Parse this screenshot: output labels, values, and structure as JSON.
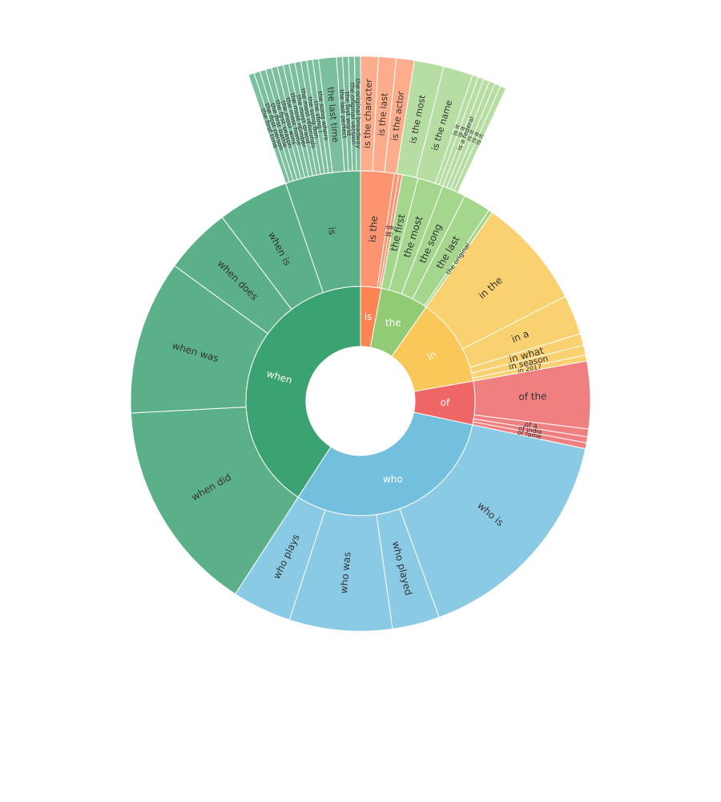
{
  "chart_data": {
    "type": "sunburst",
    "title": "",
    "colors": {
      "when": [
        "#3ba272",
        "#5bb08a",
        "#7cbf9f"
      ],
      "is": [
        "#fc8452",
        "#fd9470",
        "#fdac8c"
      ],
      "the": [
        "#91cc75",
        "#a5d68e",
        "#b6dea3"
      ],
      "in": [
        "#fac858",
        "#fad170",
        "#fbda8b"
      ],
      "of": [
        "#ee6666",
        "#f07f7f",
        "#f39595"
      ],
      "who": [
        "#73c0de",
        "#8bcae4",
        "#a3d4ea"
      ]
    },
    "rings": [
      [
        {
          "name": "is",
          "start": 0,
          "end": 10.5
        },
        {
          "name": "the",
          "start": 10.5,
          "end": 35
        },
        {
          "name": "in",
          "start": 35,
          "end": 80
        },
        {
          "name": "of",
          "start": 80,
          "end": 102
        },
        {
          "name": "who",
          "start": 102,
          "end": 213
        },
        {
          "name": "when",
          "start": 213,
          "end": 360
        }
      ],
      [
        {
          "name": "is the",
          "start": 0,
          "end": 8.5
        },
        {
          "name": "is it",
          "start": 8.5,
          "end": 9.6
        },
        {
          "name": "is a",
          "start": 9.6,
          "end": 10.5
        },
        {
          "name": "the first",
          "start": 10.5,
          "end": 14.5
        },
        {
          "name": "the most",
          "start": 14.5,
          "end": 21
        },
        {
          "name": "the song",
          "start": 21,
          "end": 27
        },
        {
          "name": "the last",
          "start": 27,
          "end": 34
        },
        {
          "name": "the original",
          "start": 34,
          "end": 35
        },
        {
          "name": "in the",
          "start": 35,
          "end": 63
        },
        {
          "name": "in a",
          "start": 63,
          "end": 73
        },
        {
          "name": "in what",
          "start": 73,
          "end": 76
        },
        {
          "name": "in season",
          "start": 76,
          "end": 78.5
        },
        {
          "name": "in 2017",
          "start": 78.5,
          "end": 80
        },
        {
          "name": "of the",
          "start": 80,
          "end": 97
        },
        {
          "name": "of a",
          "start": 97,
          "end": 99
        },
        {
          "name": "of india",
          "start": 99,
          "end": 100.5
        },
        {
          "name": "of fame",
          "start": 100.5,
          "end": 102
        },
        {
          "name": "who is",
          "start": 102,
          "end": 160
        },
        {
          "name": "who played",
          "start": 160,
          "end": 172
        },
        {
          "name": "who was",
          "start": 172,
          "end": 198
        },
        {
          "name": "who plays",
          "start": 198,
          "end": 213
        },
        {
          "name": "when did",
          "start": 213,
          "end": 267
        },
        {
          "name": "when was",
          "start": 267,
          "end": 306
        },
        {
          "name": "when does",
          "start": 306,
          "end": 323
        },
        {
          "name": "when is",
          "start": 323,
          "end": 341
        },
        {
          "name": "is",
          "start": 341,
          "end": 360
        }
      ],
      [
        {
          "name": "is the character",
          "start": 0,
          "end": 3
        },
        {
          "name": "is the last",
          "start": 3,
          "end": 6
        },
        {
          "name": "is the actor",
          "start": 6,
          "end": 9
        },
        {
          "name": "is the most",
          "start": 9,
          "end": 14
        },
        {
          "name": "is the name",
          "start": 14,
          "end": 19
        },
        {
          "name": "is it",
          "start": 19,
          "end": 20
        },
        {
          "name": "is a",
          "start": 20,
          "end": 21
        },
        {
          "name": "is a federal",
          "start": 21,
          "end": 22
        },
        {
          "name": "is it",
          "start": 22,
          "end": 23
        },
        {
          "name": "is a",
          "start": 23,
          "end": 24
        },
        {
          "name": "is it",
          "start": 24,
          "end": 25
        },
        {
          "name": "the first time",
          "start": 341,
          "end": 342
        },
        {
          "name": "the first person",
          "start": 342,
          "end": 343
        },
        {
          "name": "the first battle",
          "start": 343,
          "end": 344
        },
        {
          "name": "the first season",
          "start": 344,
          "end": 345
        },
        {
          "name": "the most wins",
          "start": 345,
          "end": 346
        },
        {
          "name": "the most home",
          "start": 346,
          "end": 347
        },
        {
          "name": "the most number",
          "start": 347,
          "end": 348
        },
        {
          "name": "the most grand",
          "start": 348,
          "end": 349
        },
        {
          "name": "the most rebounds",
          "start": 349,
          "end": 350
        },
        {
          "name": "the song don",
          "start": 350,
          "end": 351
        },
        {
          "name": "the song i",
          "start": 351,
          "end": 352
        },
        {
          "name": "the song where",
          "start": 352,
          "end": 353
        },
        {
          "name": "the last time",
          "start": 353,
          "end": 356
        },
        {
          "name": "the last perfect",
          "start": 356,
          "end": 357
        },
        {
          "name": "the last world",
          "start": 357,
          "end": 358
        },
        {
          "name": "the original version",
          "start": 358,
          "end": 359
        },
        {
          "name": "the original broadway",
          "start": 359,
          "end": 360
        }
      ]
    ]
  }
}
